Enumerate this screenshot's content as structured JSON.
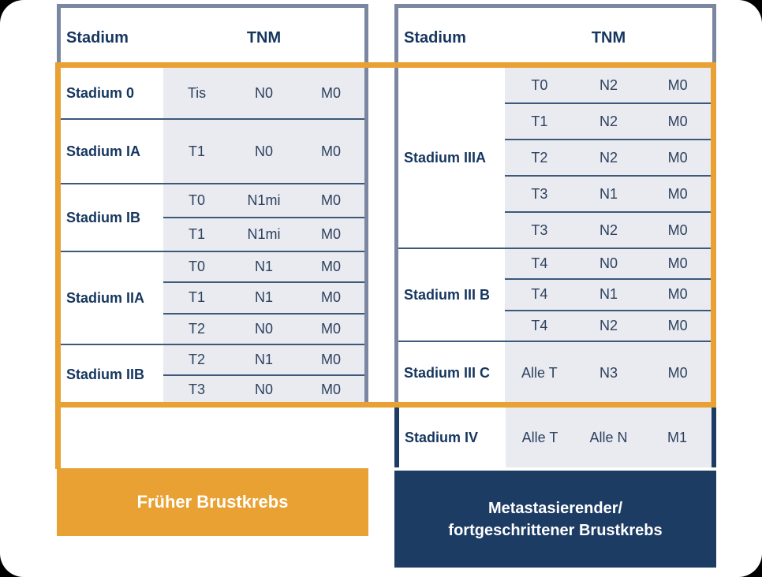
{
  "colors": {
    "orange": "#E8A132",
    "navy": "#1D3C64",
    "border-gray": "#7B87A0",
    "row-bg": "#E9EBF1",
    "separator": "#3D5878",
    "label-text": "#16365F",
    "value-text": "#2E415E"
  },
  "left_table": {
    "header": {
      "stadium": "Stadium",
      "tnm": "TNM"
    },
    "groups": [
      {
        "label": "Stadium 0",
        "rows": [
          [
            "Tis",
            "N0",
            "M0"
          ]
        ]
      },
      {
        "label": "Stadium IA",
        "rows": [
          [
            "T1",
            "N0",
            "M0"
          ]
        ]
      },
      {
        "label": "Stadium IB",
        "rows": [
          [
            "T0",
            "N1mi",
            "M0"
          ],
          [
            "T1",
            "N1mi",
            "M0"
          ]
        ]
      },
      {
        "label": "Stadium IIA",
        "rows": [
          [
            "T0",
            "N1",
            "M0"
          ],
          [
            "T1",
            "N1",
            "M0"
          ],
          [
            "T2",
            "N0",
            "M0"
          ]
        ]
      },
      {
        "label": "Stadium IIB",
        "rows": [
          [
            "T2",
            "N1",
            "M0"
          ],
          [
            "T3",
            "N0",
            "M0"
          ]
        ]
      }
    ],
    "banner": "Früher Brustkrebs"
  },
  "right_table": {
    "header": {
      "stadium": "Stadium",
      "tnm": "TNM"
    },
    "groups": [
      {
        "label": "Stadium IIIA",
        "rows": [
          [
            "T0",
            "N2",
            "M0"
          ],
          [
            "T1",
            "N2",
            "M0"
          ],
          [
            "T2",
            "N2",
            "M0"
          ],
          [
            "T3",
            "N1",
            "M0"
          ],
          [
            "T3",
            "N2",
            "M0"
          ]
        ]
      },
      {
        "label": "Stadium III B",
        "rows": [
          [
            "T4",
            "N0",
            "M0"
          ],
          [
            "T4",
            "N1",
            "M0"
          ],
          [
            "T4",
            "N2",
            "M0"
          ]
        ]
      },
      {
        "label": "Stadium III C",
        "rows": [
          [
            "Alle T",
            "N3",
            "M0"
          ]
        ]
      }
    ],
    "stadium_iv": {
      "label": "Stadium IV",
      "row": [
        "Alle T",
        "Alle N",
        "M1"
      ]
    },
    "banner_line1": "Metastasierender/",
    "banner_line2": "fortgeschrittener Brustkrebs"
  }
}
